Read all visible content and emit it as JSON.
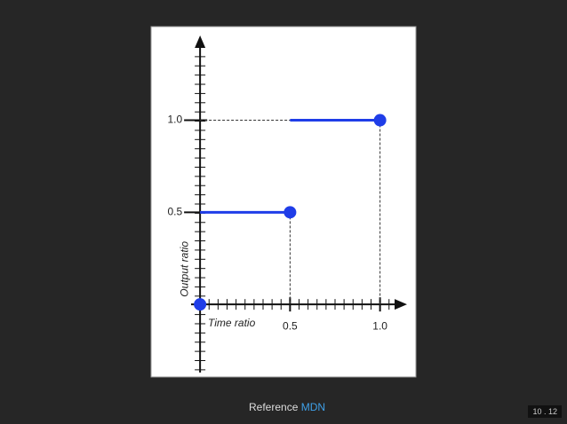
{
  "chart_data": {
    "type": "step",
    "x_label": "Time ratio",
    "y_label": "Output ratio",
    "series": [
      {
        "color": "#1f3de8",
        "x": [
          0,
          0.5,
          1
        ],
        "values": [
          0,
          0.5,
          1
        ]
      }
    ],
    "xlim": [
      -0.05,
      1.15
    ],
    "ylim": [
      -0.37,
      1.46
    ],
    "xticks": [
      0.5,
      {
        "value": 1,
        "label": "1.0"
      }
    ],
    "yticks": [
      0.5,
      {
        "value": 1,
        "label": "1.0"
      }
    ]
  },
  "footer": {
    "text": "Reference",
    "link": "MDN"
  },
  "slide_number": "10 . 12"
}
